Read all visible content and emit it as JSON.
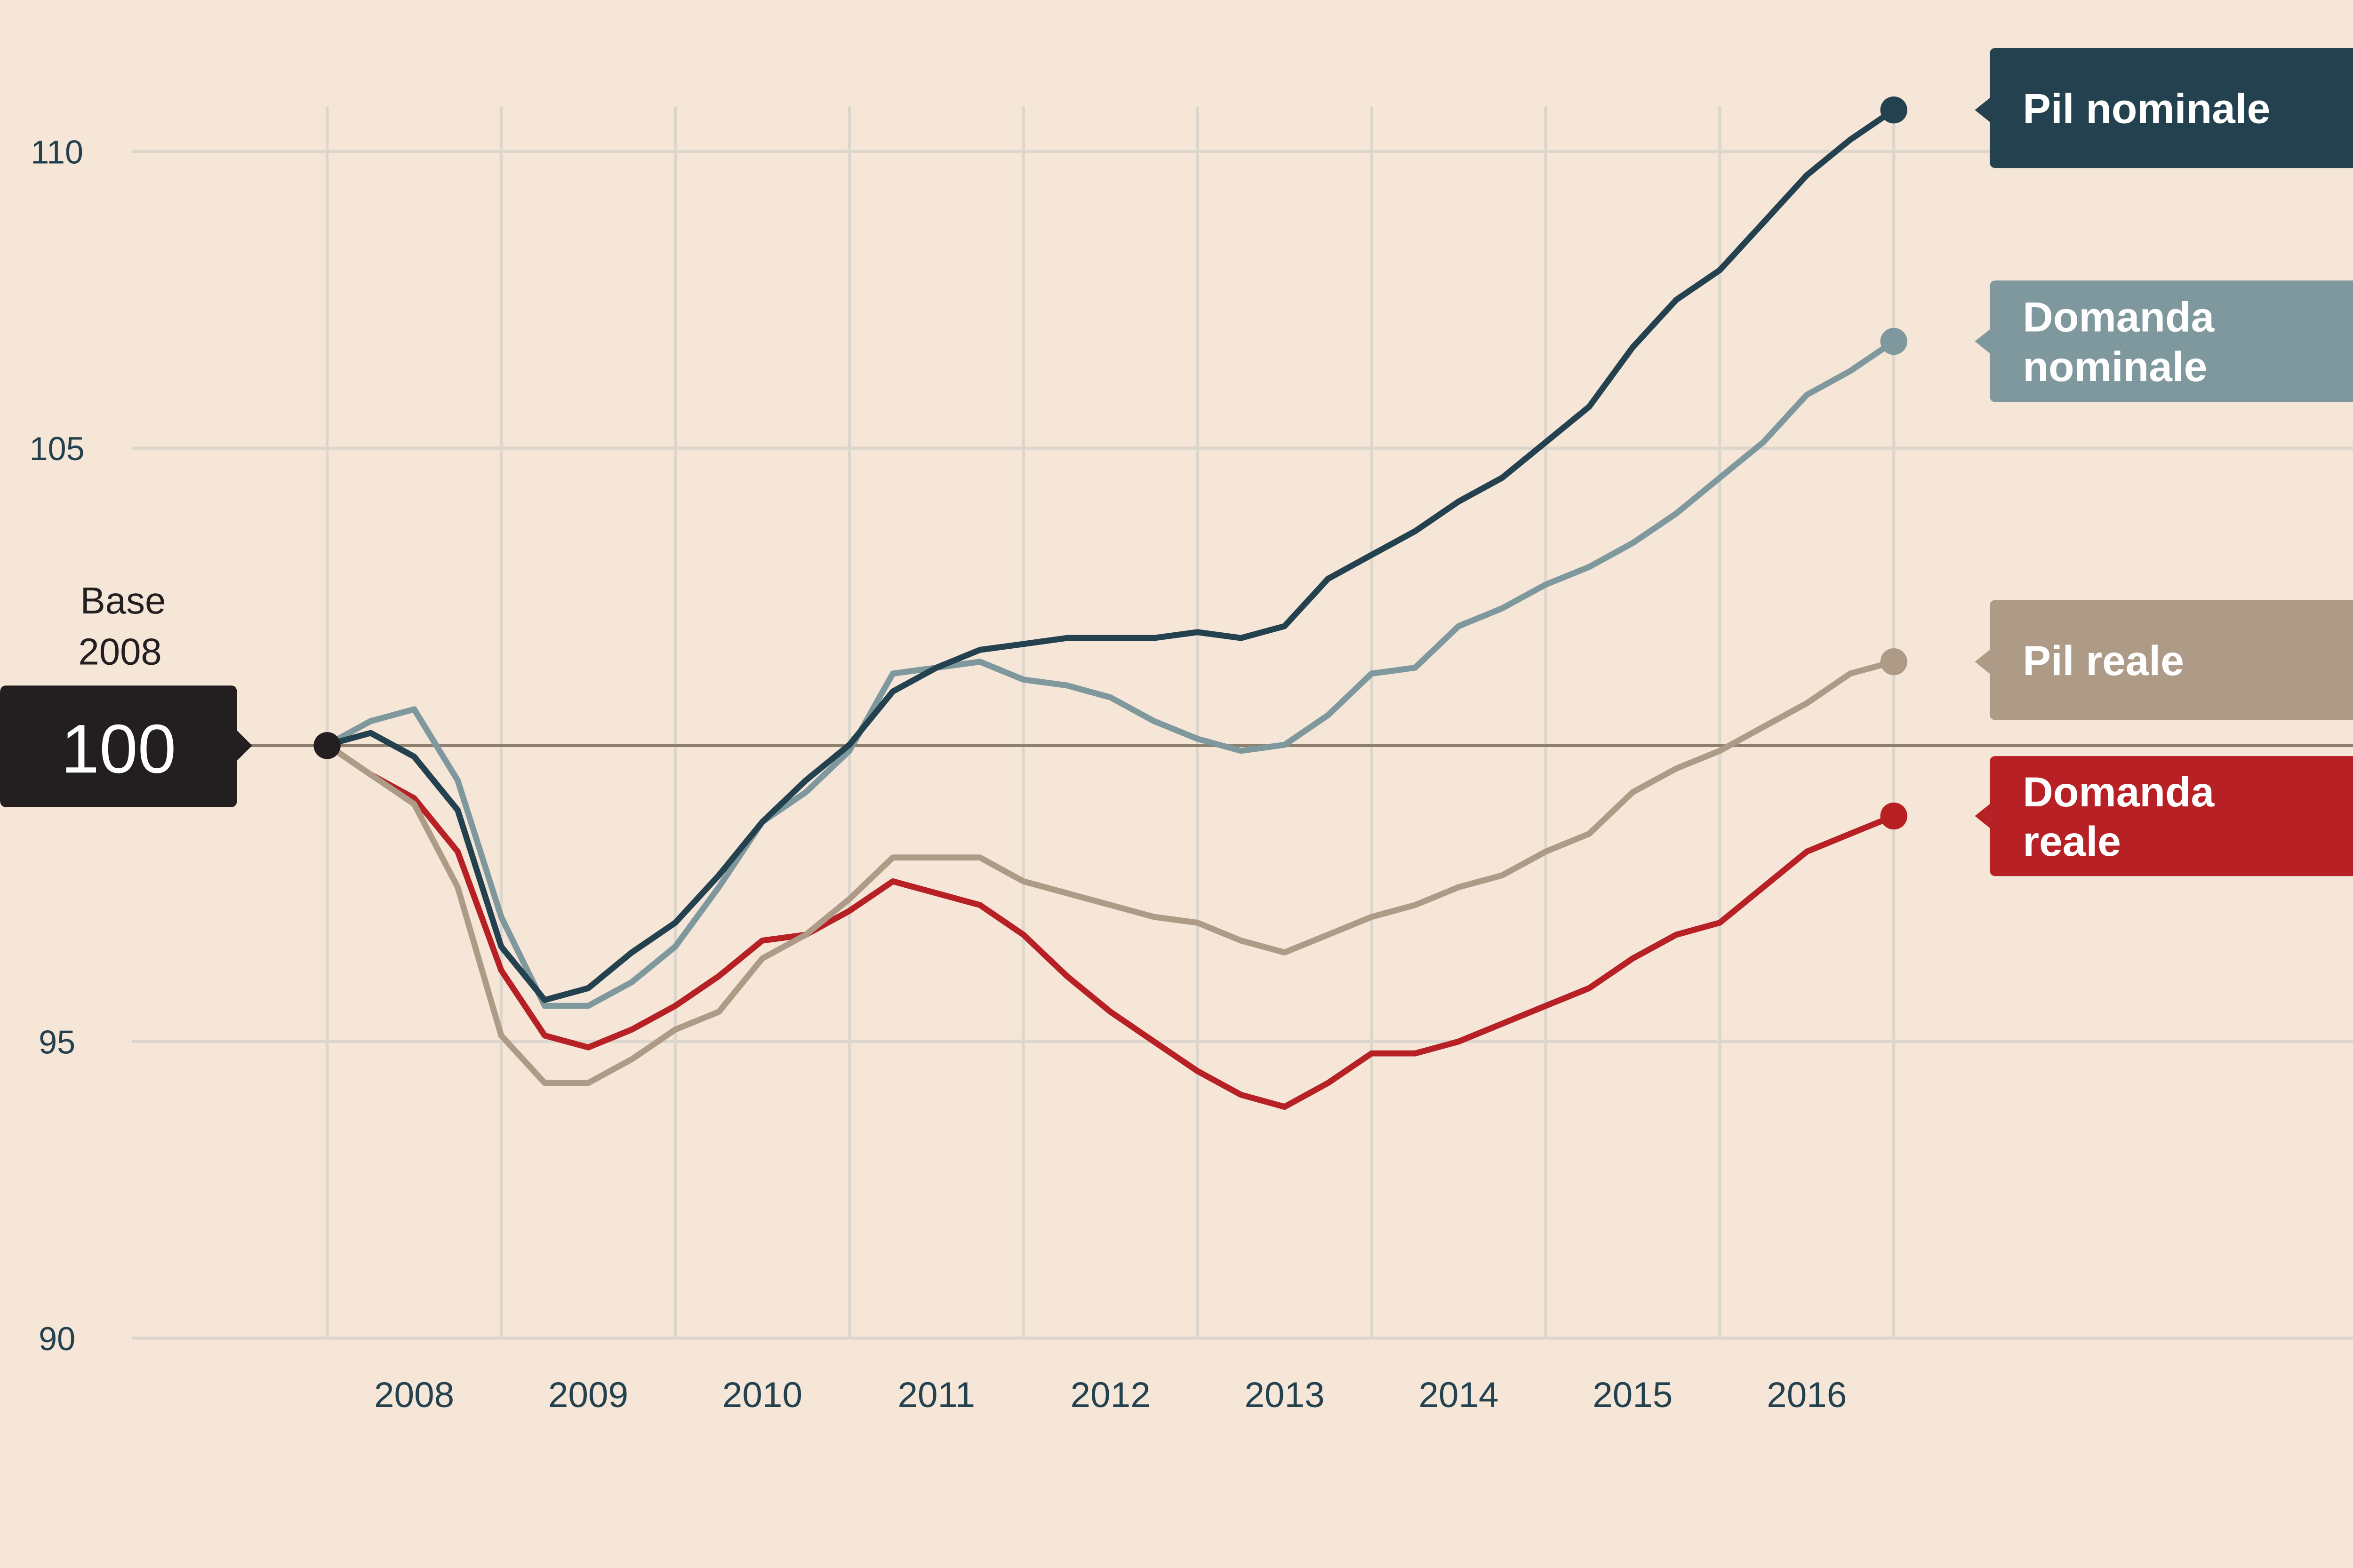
{
  "chart_data": {
    "type": "line",
    "title": "",
    "xlabel": "",
    "ylabel": "",
    "ylim": [
      90,
      110
    ],
    "yticks": [
      "90",
      "95",
      "105",
      "110"
    ],
    "ytick_values": [
      90,
      95,
      105,
      110
    ],
    "x_start": 2008.0,
    "x_step": 0.25,
    "xticks": [
      "2008",
      "2009",
      "2010",
      "2011",
      "2012",
      "2013",
      "2014",
      "2015",
      "2016"
    ],
    "grid": true,
    "base": {
      "label_line1": "Base",
      "label_line2": "2008",
      "value": "100",
      "color": "#231f20"
    },
    "series": [
      {
        "name": "Pil nominale",
        "label_lines": [
          "Pil nominale"
        ],
        "color": "#24414f",
        "values": [
          100.0,
          100.2,
          99.8,
          98.9,
          96.6,
          95.7,
          95.9,
          96.5,
          97.0,
          97.8,
          98.7,
          99.4,
          100.0,
          100.9,
          101.3,
          101.6,
          101.7,
          101.8,
          101.8,
          101.8,
          101.9,
          101.8,
          102.0,
          102.8,
          103.2,
          103.6,
          104.1,
          104.5,
          105.1,
          105.7,
          106.7,
          107.5,
          108.0,
          108.8,
          109.6,
          110.2,
          110.7
        ]
      },
      {
        "name": "Domanda nominale",
        "label_lines": [
          "Domanda",
          "nominale"
        ],
        "color": "#7f989e",
        "values": [
          100.0,
          100.4,
          100.6,
          99.4,
          97.1,
          95.6,
          95.6,
          96.0,
          96.6,
          97.6,
          98.7,
          99.2,
          99.9,
          101.2,
          101.3,
          101.4,
          101.1,
          101.0,
          100.8,
          100.4,
          100.1,
          99.9,
          100.0,
          100.5,
          101.2,
          101.3,
          102.0,
          102.3,
          102.7,
          103.0,
          103.4,
          103.9,
          104.5,
          105.1,
          105.9,
          106.3,
          106.8
        ]
      },
      {
        "name": "Pil reale",
        "label_lines": [
          "Pil reale"
        ],
        "color": "#ad9a87",
        "values": [
          100.0,
          99.5,
          99.0,
          97.6,
          95.1,
          94.3,
          94.3,
          94.7,
          95.2,
          95.5,
          96.4,
          96.8,
          97.4,
          98.1,
          98.1,
          98.1,
          97.7,
          97.5,
          97.3,
          97.1,
          97.0,
          96.7,
          96.5,
          96.8,
          97.1,
          97.3,
          97.6,
          97.8,
          98.2,
          98.5,
          99.2,
          99.6,
          99.9,
          100.3,
          100.7,
          101.2,
          101.4
        ]
      },
      {
        "name": "Domanda reale",
        "label_lines": [
          "Domanda",
          "reale"
        ],
        "color": "#b72025",
        "values": [
          100.0,
          99.5,
          99.1,
          98.2,
          96.2,
          95.1,
          94.9,
          95.2,
          95.6,
          96.1,
          96.7,
          96.8,
          97.2,
          97.7,
          97.5,
          97.3,
          96.8,
          96.1,
          95.5,
          95.0,
          94.5,
          94.1,
          93.9,
          94.3,
          94.8,
          94.8,
          95.0,
          95.3,
          95.6,
          95.9,
          96.4,
          96.8,
          97.0,
          97.6,
          98.2,
          98.5,
          98.8
        ]
      }
    ],
    "legend": "right, end-of-line labels"
  }
}
